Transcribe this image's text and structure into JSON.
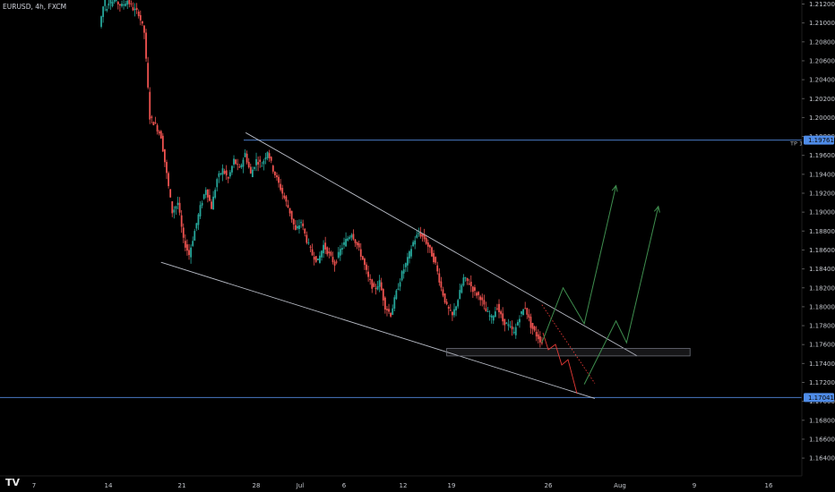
{
  "symbol_label": "EURUSD, 4h, FXCM",
  "watermark": "TV",
  "colors": {
    "background": "#000000",
    "up": "#26a69a",
    "down": "#ef5350",
    "level_line": "#4a78c2",
    "badge": "#4f8ce8",
    "channel": "#b8bcc6",
    "projection_up": "#3f8f4f",
    "projection_down": "#e53935"
  },
  "chart_data": {
    "type": "candlestick",
    "symbol": "EURUSD",
    "timeframe": "4h",
    "source": "FXCM",
    "y_axis": {
      "range": [
        1.1616,
        1.2128
      ],
      "ticks": [
        "1.21200",
        "1.21000",
        "1.20800",
        "1.20600",
        "1.20400",
        "1.20200",
        "1.20000",
        "1.19800",
        "1.19600",
        "1.19400",
        "1.19200",
        "1.19000",
        "1.18800",
        "1.18600",
        "1.18400",
        "1.18200",
        "1.18000",
        "1.17800",
        "1.17600",
        "1.17400",
        "1.17200",
        "1.17000",
        "1.16800",
        "1.16600",
        "1.16400"
      ],
      "position": "right"
    },
    "x_axis": {
      "ticks": [
        "7",
        "14",
        "21",
        "28",
        "Jul",
        "6",
        "12",
        "19",
        "26",
        "Aug",
        "9",
        "16"
      ]
    },
    "levels": [
      {
        "price": 1.19761,
        "label": "1.19761",
        "tag": "TP 1"
      },
      {
        "price": 1.17041,
        "label": "1.17041",
        "tag": ""
      }
    ],
    "channel": {
      "upper": [
        [
          "Jun 27",
          1.1984
        ],
        [
          "Aug 3",
          1.1748
        ]
      ],
      "lower": [
        [
          "Jun 19",
          1.1847
        ],
        [
          "Jul 30",
          1.1703
        ]
      ]
    },
    "zone": {
      "from": "Jul 16",
      "to": "Aug 8",
      "top": 1.1756,
      "bottom": 1.1748
    },
    "projection_down": [
      [
        "Jul 25",
        1.1802
      ],
      [
        "Jul 30",
        1.1719
      ]
    ],
    "projection_up_1": [
      [
        "Jul 25",
        1.1762
      ],
      [
        "Jul 27",
        1.182
      ],
      [
        "Jul 29",
        1.1782
      ],
      [
        "Aug 1",
        1.1928
      ]
    ],
    "projection_up_2": [
      [
        "Jul 29",
        1.1718
      ],
      [
        "Aug 1",
        1.1785
      ],
      [
        "Aug 2",
        1.1762
      ],
      [
        "Aug 5",
        1.1906
      ]
    ],
    "ohlc_path": [
      [
        1.2096,
        1.2128
      ],
      [
        1.2112,
        1.2128
      ],
      [
        1.212,
        1.2128
      ],
      [
        1.2122,
        1.2118
      ],
      [
        1.2118,
        1.2124
      ],
      [
        1.2124,
        1.2115
      ],
      [
        1.2115,
        1.211
      ],
      [
        1.211,
        1.209
      ],
      [
        1.209,
        1.2
      ],
      [
        1.2,
        1.1992
      ],
      [
        1.1992,
        1.198
      ],
      [
        1.198,
        1.194
      ],
      [
        1.194,
        1.19
      ],
      [
        1.19,
        1.191
      ],
      [
        1.191,
        1.187
      ],
      [
        1.187,
        1.1855
      ],
      [
        1.1855,
        1.188
      ],
      [
        1.188,
        1.1905
      ],
      [
        1.1905,
        1.1925
      ],
      [
        1.1925,
        1.1905
      ],
      [
        1.1905,
        1.1935
      ],
      [
        1.1935,
        1.1945
      ],
      [
        1.1945,
        1.1935
      ],
      [
        1.1935,
        1.1955
      ],
      [
        1.1955,
        1.1945
      ],
      [
        1.1945,
        1.1962
      ],
      [
        1.1962,
        1.194
      ],
      [
        1.194,
        1.1955
      ],
      [
        1.1955,
        1.195
      ],
      [
        1.195,
        1.1965
      ],
      [
        1.1965,
        1.1945
      ],
      [
        1.1945,
        1.193
      ],
      [
        1.193,
        1.1915
      ],
      [
        1.1915,
        1.19
      ],
      [
        1.19,
        1.188
      ],
      [
        1.188,
        1.189
      ],
      [
        1.189,
        1.187
      ],
      [
        1.187,
        1.1855
      ],
      [
        1.1855,
        1.1848
      ],
      [
        1.1848,
        1.1865
      ],
      [
        1.1865,
        1.1855
      ],
      [
        1.1855,
        1.1845
      ],
      [
        1.1845,
        1.186
      ],
      [
        1.186,
        1.187
      ],
      [
        1.187,
        1.1878
      ],
      [
        1.1878,
        1.1865
      ],
      [
        1.1865,
        1.185
      ],
      [
        1.185,
        1.183
      ],
      [
        1.183,
        1.1818
      ],
      [
        1.1818,
        1.1826
      ],
      [
        1.1826,
        1.18
      ],
      [
        1.18,
        1.1792
      ],
      [
        1.1792,
        1.1815
      ],
      [
        1.1815,
        1.1835
      ],
      [
        1.1835,
        1.185
      ],
      [
        1.185,
        1.1868
      ],
      [
        1.1868,
        1.1878
      ],
      [
        1.1878,
        1.1872
      ],
      [
        1.1872,
        1.186
      ],
      [
        1.186,
        1.1845
      ],
      [
        1.1845,
        1.182
      ],
      [
        1.182,
        1.18
      ],
      [
        1.18,
        1.179
      ],
      [
        1.179,
        1.1808
      ],
      [
        1.1808,
        1.183
      ],
      [
        1.183,
        1.1825
      ],
      [
        1.1825,
        1.1815
      ],
      [
        1.1815,
        1.181
      ],
      [
        1.181,
        1.1795
      ],
      [
        1.1795,
        1.1788
      ],
      [
        1.1788,
        1.18
      ],
      [
        1.18,
        1.1785
      ],
      [
        1.1785,
        1.178
      ],
      [
        1.178,
        1.1772
      ],
      [
        1.1772,
        1.179
      ],
      [
        1.179,
        1.18
      ],
      [
        1.18,
        1.178
      ],
      [
        1.178,
        1.177
      ],
      [
        1.177,
        1.1762
      ]
    ]
  }
}
